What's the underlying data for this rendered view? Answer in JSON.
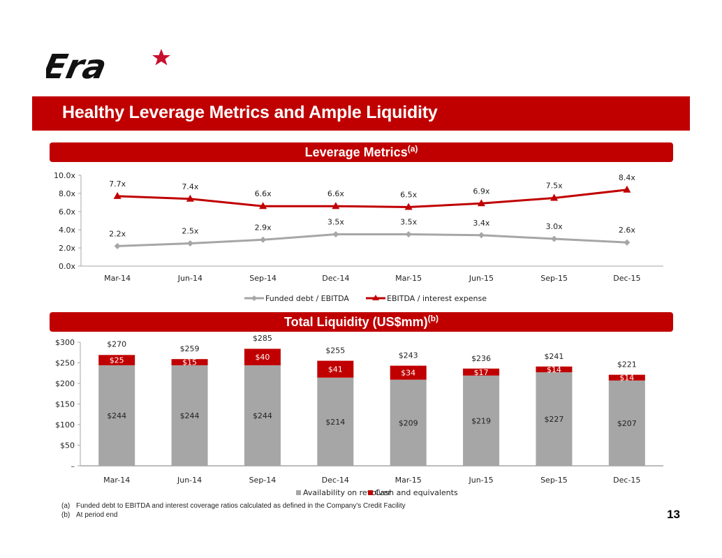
{
  "brand": {
    "logo_text": "Era",
    "logo_icon": "star-icon",
    "accent_color": "#c00000",
    "gray_color": "#a6a6a6"
  },
  "header": {
    "title": "Healthy Leverage Metrics and Ample Liquidity"
  },
  "sections": {
    "leverage": {
      "label": "Leverage Metrics",
      "note": "(a)"
    },
    "liquidity": {
      "label": "Total Liquidity (US$mm)",
      "note": "(b)"
    }
  },
  "chart_data": [
    {
      "type": "line",
      "title": "Leverage Metrics",
      "categories": [
        "Mar-14",
        "Jun-14",
        "Sep-14",
        "Dec-14",
        "Mar-15",
        "Jun-15",
        "Sep-15",
        "Dec-15"
      ],
      "yticks": [
        "0.0x",
        "2.0x",
        "4.0x",
        "6.0x",
        "8.0x",
        "10.0x"
      ],
      "ylim": [
        0,
        10
      ],
      "grid": false,
      "legend_position": "bottom",
      "series": [
        {
          "name": "Funded debt /  EBITDA",
          "color": "#a6a6a6",
          "marker": "diamond",
          "values": [
            2.2,
            2.5,
            2.9,
            3.5,
            3.5,
            3.4,
            3.0,
            2.6
          ],
          "labels": [
            "2.2x",
            "2.5x",
            "2.9x",
            "3.5x",
            "3.5x",
            "3.4x",
            "3.0x",
            "2.6x"
          ]
        },
        {
          "name": "EBITDA / interest expense",
          "color": "#c00000",
          "marker": "triangle",
          "values": [
            7.7,
            7.4,
            6.6,
            6.6,
            6.5,
            6.9,
            7.5,
            8.4
          ],
          "labels": [
            "7.7x",
            "7.4x",
            "6.6x",
            "6.6x",
            "6.5x",
            "6.9x",
            "7.5x",
            "8.4x"
          ]
        }
      ]
    },
    {
      "type": "bar",
      "stacked": true,
      "title": "Total Liquidity (US$mm)",
      "categories": [
        "Mar-14",
        "Jun-14",
        "Sep-14",
        "Dec-14",
        "Mar-15",
        "Jun-15",
        "Sep-15",
        "Dec-15"
      ],
      "yticks": [
        "–",
        "$50",
        "$100",
        "$150",
        "$200",
        "$250",
        "$300"
      ],
      "ylim": [
        0,
        300
      ],
      "grid": false,
      "legend_position": "bottom",
      "series": [
        {
          "name": "Availability on revolver",
          "color": "#a6a6a6",
          "values": [
            244,
            244,
            244,
            214,
            209,
            219,
            227,
            207
          ],
          "labels": [
            "$244",
            "$244",
            "$244",
            "$214",
            "$209",
            "$219",
            "$227",
            "$207"
          ]
        },
        {
          "name": "Cash and equivalents",
          "color": "#c00000",
          "values": [
            25,
            15,
            40,
            41,
            34,
            17,
            14,
            14
          ],
          "labels": [
            "$25",
            "$15",
            "$40",
            "$41",
            "$34",
            "$17",
            "$14",
            "$14"
          ]
        }
      ],
      "totals": [
        270,
        259,
        285,
        255,
        243,
        236,
        241,
        221
      ],
      "total_labels": [
        "$270",
        "$259",
        "$285",
        "$255",
        "$243",
        "$236",
        "$241",
        "$221"
      ]
    }
  ],
  "footnotes": [
    {
      "key": "(a)",
      "text": "Funded debt to EBITDA and interest coverage ratios calculated as defined in the Company's Credit Facility"
    },
    {
      "key": "(b)",
      "text": "At period end"
    }
  ],
  "page_number": "13"
}
